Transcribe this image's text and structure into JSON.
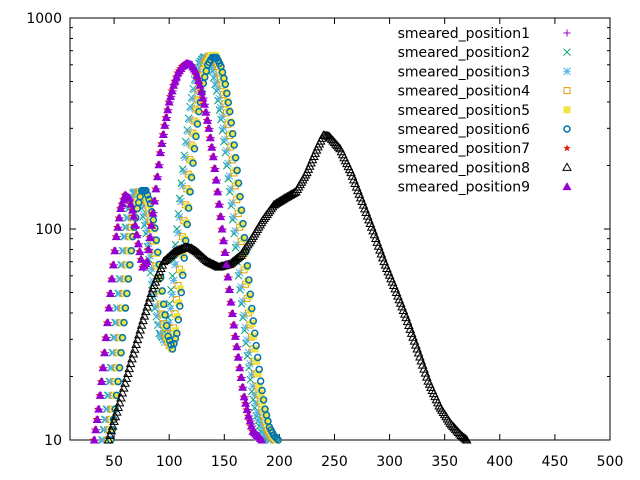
{
  "chart_data": {
    "type": "scatter",
    "title": "",
    "xlabel": "",
    "ylabel": "",
    "xlim": [
      10,
      500
    ],
    "ylim": [
      10,
      1000
    ],
    "yscale": "log",
    "grid": false,
    "legend_position": "top-right",
    "x_ticks": [
      50,
      100,
      150,
      200,
      250,
      300,
      350,
      400,
      450,
      500
    ],
    "y_ticks": [
      10,
      100,
      1000
    ],
    "x_tick_labels": [
      "50",
      "100",
      "150",
      "200",
      "250",
      "300",
      "350",
      "400",
      "450",
      "500"
    ],
    "y_tick_labels": [
      "10",
      "100",
      "1000"
    ],
    "series": [
      {
        "name": "smeared_position1",
        "marker": "plus",
        "color": "#9400d3",
        "x": [
          33,
          37,
          41,
          45,
          49,
          53,
          57,
          61,
          65,
          69,
          73,
          77,
          81,
          85,
          89,
          93,
          97,
          101,
          105,
          109,
          113,
          117,
          121,
          125,
          129,
          133,
          137,
          141,
          145,
          149,
          153,
          157,
          161,
          165,
          169,
          173,
          177,
          181,
          185
        ],
        "y": [
          10,
          14,
          22,
          36,
          58,
          92,
          125,
          145,
          138,
          112,
          85,
          65,
          70,
          105,
          155,
          230,
          310,
          400,
          480,
          550,
          590,
          610,
          600,
          560,
          480,
          390,
          300,
          220,
          150,
          100,
          68,
          45,
          31,
          22,
          16,
          13,
          11,
          10.5,
          10
        ]
      },
      {
        "name": "smeared_position2",
        "marker": "cross",
        "color": "#009e73",
        "x": [
          39,
          43,
          47,
          51,
          55,
          59,
          63,
          67,
          71,
          75,
          79,
          83,
          87,
          91,
          95,
          99,
          103,
          107,
          111,
          115,
          119,
          123,
          127,
          131,
          135,
          139,
          143,
          147,
          151,
          155,
          159,
          163,
          167,
          171,
          175,
          179,
          183,
          187,
          191
        ],
        "y": [
          10,
          14,
          22,
          36,
          58,
          92,
          125,
          148,
          145,
          125,
          95,
          62,
          42,
          32,
          30,
          38,
          60,
          100,
          165,
          260,
          380,
          510,
          610,
          650,
          630,
          560,
          450,
          330,
          230,
          150,
          95,
          60,
          38,
          25,
          17,
          13,
          11,
          10.5,
          10
        ]
      },
      {
        "name": "smeared_position3",
        "marker": "star",
        "color": "#56b4e9",
        "x": [
          40,
          44,
          48,
          52,
          56,
          60,
          64,
          68,
          72,
          76,
          80,
          84,
          88,
          92,
          96,
          100,
          104,
          108,
          112,
          116,
          120,
          124,
          128,
          132,
          136,
          140,
          144,
          148,
          152,
          156,
          160,
          164,
          168,
          172,
          176,
          180,
          184,
          188,
          192
        ],
        "y": [
          10,
          14,
          22,
          36,
          58,
          92,
          125,
          150,
          148,
          128,
          98,
          65,
          43,
          32,
          29,
          36,
          57,
          96,
          160,
          255,
          375,
          505,
          610,
          655,
          640,
          570,
          460,
          340,
          235,
          155,
          98,
          62,
          39,
          26,
          18,
          13.5,
          11.5,
          10.5,
          10
        ]
      },
      {
        "name": "smeared_position4",
        "marker": "square-open",
        "color": "#e69f00",
        "x": [
          44,
          48,
          52,
          56,
          60,
          64,
          68,
          72,
          76,
          80,
          84,
          88,
          92,
          96,
          100,
          104,
          108,
          112,
          116,
          120,
          124,
          128,
          132,
          136,
          140,
          144,
          148,
          152,
          156,
          160,
          164,
          168,
          172,
          176,
          180,
          184,
          188,
          192,
          196
        ],
        "y": [
          10,
          14,
          22,
          36,
          58,
          92,
          125,
          150,
          150,
          130,
          100,
          67,
          44,
          32,
          28,
          34,
          54,
          92,
          155,
          250,
          370,
          500,
          610,
          660,
          655,
          590,
          480,
          355,
          245,
          160,
          102,
          64,
          40,
          27,
          18,
          14,
          11.5,
          10.5,
          10
        ]
      },
      {
        "name": "smeared_position5",
        "marker": "square-filled",
        "color": "#f0e442",
        "x": [
          46,
          50,
          54,
          58,
          62,
          66,
          70,
          74,
          78,
          82,
          86,
          90,
          94,
          98,
          102,
          106,
          110,
          114,
          118,
          122,
          126,
          130,
          134,
          138,
          142,
          146,
          150,
          154,
          158,
          162,
          166,
          170,
          174,
          178,
          182,
          186,
          190,
          194,
          198
        ],
        "y": [
          10,
          14,
          22,
          36,
          58,
          92,
          125,
          150,
          150,
          130,
          100,
          67,
          44,
          31,
          27,
          33,
          52,
          90,
          152,
          245,
          365,
          495,
          605,
          665,
          665,
          600,
          490,
          365,
          250,
          165,
          105,
          66,
          41,
          27,
          18,
          14,
          11.5,
          10.5,
          10
        ]
      },
      {
        "name": "smeared_position6",
        "marker": "circle-open",
        "color": "#0072b2",
        "x": [
          47,
          51,
          55,
          59,
          63,
          67,
          71,
          75,
          79,
          83,
          87,
          91,
          95,
          99,
          103,
          107,
          111,
          115,
          119,
          123,
          127,
          131,
          135,
          139,
          143,
          147,
          151,
          155,
          159,
          163,
          167,
          171,
          175,
          179,
          183,
          187,
          191,
          195,
          199
        ],
        "y": [
          10,
          14,
          22,
          36,
          58,
          92,
          125,
          152,
          152,
          132,
          101,
          68,
          44,
          31,
          27,
          32,
          50,
          88,
          150,
          240,
          360,
          490,
          600,
          650,
          650,
          590,
          485,
          360,
          250,
          165,
          106,
          67,
          42,
          28,
          19,
          14,
          11.5,
          10.5,
          10
        ]
      },
      {
        "name": "smeared_position7",
        "marker": "star-filled",
        "color": "#e51e10",
        "x": [
          31,
          35,
          39,
          43,
          47,
          51,
          55,
          59,
          63,
          67,
          71,
          75,
          79,
          83,
          87,
          91,
          95,
          99,
          103,
          107,
          111,
          115,
          119,
          123,
          127,
          131,
          135,
          139,
          143,
          147,
          151,
          155,
          159,
          163,
          167,
          171,
          175,
          179,
          183
        ],
        "y": [
          10,
          14,
          22,
          36,
          58,
          92,
          125,
          145,
          140,
          115,
          85,
          66,
          70,
          104,
          155,
          230,
          310,
          400,
          480,
          550,
          590,
          610,
          600,
          560,
          480,
          390,
          300,
          220,
          150,
          100,
          68,
          45,
          31,
          22,
          16,
          13,
          11,
          10.5,
          10
        ]
      },
      {
        "name": "smeared_position8",
        "marker": "triangle-open",
        "color": "#000000",
        "x": [
          45,
          55,
          65,
          75,
          85,
          95,
          105,
          115,
          120,
          125,
          135,
          145,
          155,
          165,
          175,
          185,
          195,
          205,
          215,
          225,
          235,
          240,
          245,
          255,
          265,
          275,
          285,
          295,
          305,
          315,
          325,
          335,
          345,
          355,
          365,
          370
        ],
        "y": [
          10,
          15,
          23,
          35,
          52,
          70,
          78,
          82,
          81,
          78,
          70,
          66,
          68,
          75,
          90,
          110,
          130,
          140,
          150,
          185,
          245,
          278,
          275,
          240,
          185,
          135,
          98,
          70,
          52,
          38,
          27,
          19,
          14.5,
          12,
          10.5,
          10
        ]
      },
      {
        "name": "smeared_position9",
        "marker": "triangle-filled",
        "color": "#9400d3",
        "x": [
          32,
          36,
          40,
          44,
          48,
          52,
          56,
          60,
          64,
          68,
          72,
          76,
          80,
          84,
          88,
          92,
          96,
          100,
          104,
          108,
          112,
          116,
          120,
          124,
          128,
          132,
          136,
          140,
          144,
          148,
          152,
          156,
          160,
          164,
          168,
          172,
          176,
          180,
          184
        ],
        "y": [
          10,
          14,
          22,
          36,
          58,
          92,
          125,
          145,
          140,
          115,
          85,
          66,
          70,
          104,
          155,
          230,
          310,
          400,
          480,
          550,
          590,
          610,
          600,
          560,
          480,
          390,
          300,
          220,
          150,
          100,
          68,
          45,
          31,
          22,
          16,
          13,
          11,
          10.5,
          10
        ]
      }
    ]
  }
}
